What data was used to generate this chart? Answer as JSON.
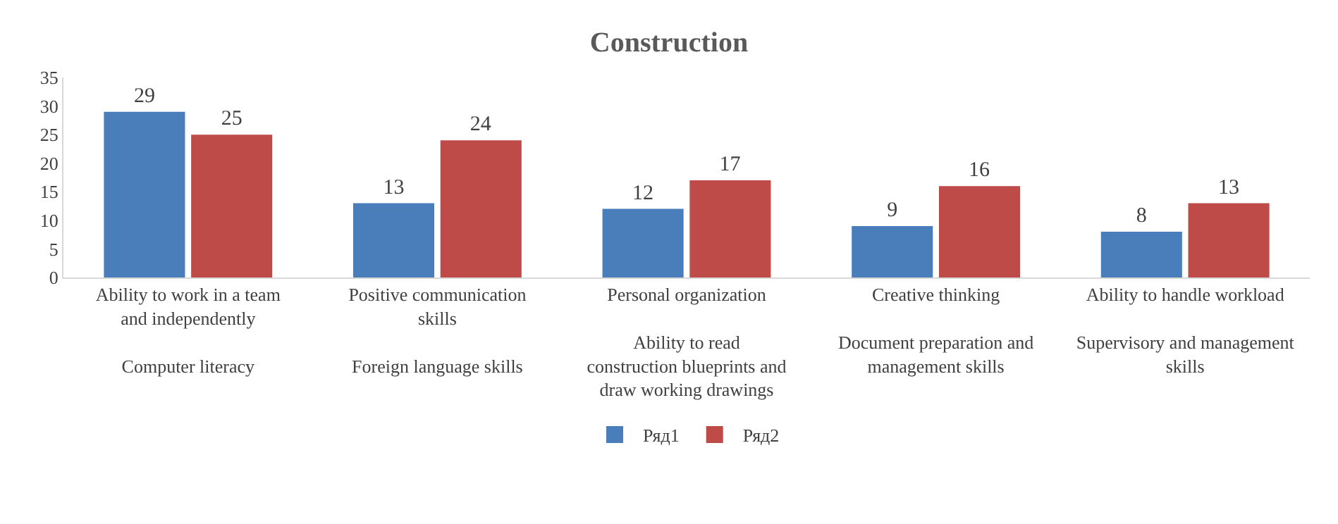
{
  "chart_data": {
    "type": "bar",
    "title": "Construction",
    "categories": [
      "Ability to work in a team and independently\n\nComputer literacy",
      "Positive communication skills\n\nForeign language skills",
      "Personal organization\n\nAbility to read construction blueprints and draw working drawings",
      "Creative thinking\n\nDocument preparation and management skills",
      "Ability to handle workload\n\nSupervisory and management skills"
    ],
    "series": [
      {
        "name": "Ряд1",
        "color": "#4a7ebb",
        "values": [
          29,
          13,
          12,
          9,
          8
        ]
      },
      {
        "name": "Ряд2",
        "color": "#be4b48",
        "values": [
          25,
          24,
          17,
          16,
          13
        ]
      }
    ],
    "ylim": [
      0,
      35
    ],
    "yticks": [
      0,
      5,
      10,
      15,
      20,
      25,
      30,
      35
    ],
    "grid": false,
    "legend": "bottom",
    "data_labels": true
  }
}
